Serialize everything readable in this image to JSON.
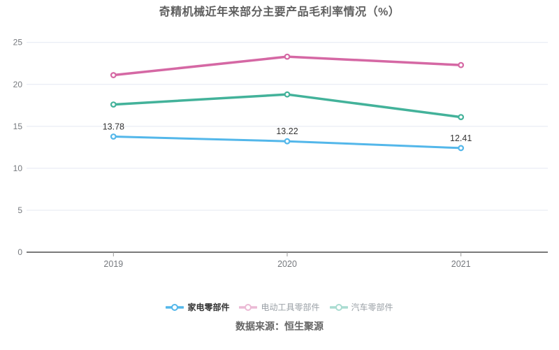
{
  "title": "奇精机械近年来部分主要产品毛利率情况（%）",
  "footer": {
    "source_label": "数据来源：恒生聚源"
  },
  "colors": {
    "appliance_blue": "#53b7ea",
    "tool_pink": "#d568a4",
    "auto_green": "#43b29a",
    "gridline": "#e4e8f2",
    "axis_line": "#4e4e4e",
    "tick": "#999999",
    "axis_text": "#76797e",
    "data_label": "#333333"
  },
  "chart_data": {
    "type": "line",
    "title": "奇精机械近年来部分主要产品毛利率情况（%）",
    "categories": [
      "2019",
      "2020",
      "2021"
    ],
    "series": [
      {
        "name": "家电零部件",
        "color": "#53b7ea",
        "width": 3,
        "values": [
          13.78,
          13.22,
          12.41
        ],
        "show_labels": true,
        "labels": [
          "13.78",
          "13.22",
          "12.41"
        ]
      },
      {
        "name": "电动工具零部件",
        "color": "#d568a4",
        "width": 3.5,
        "values": [
          21.1,
          23.3,
          22.3
        ],
        "show_labels": false,
        "labels": []
      },
      {
        "name": "汽车零部件",
        "color": "#43b29a",
        "width": 3.5,
        "values": [
          17.6,
          18.8,
          16.1
        ],
        "show_labels": false,
        "labels": []
      }
    ],
    "xlabel": "",
    "ylabel": "",
    "ylim": [
      0,
      25
    ],
    "yticks": [
      0,
      5,
      10,
      15,
      20,
      25
    ],
    "grid": true,
    "legend_position": "bottom"
  },
  "legend": {
    "items": [
      {
        "label": "家电零部件",
        "color": "#53b7ea",
        "active": true
      },
      {
        "label": "电动工具零部件",
        "color": "#d568a4",
        "active": false
      },
      {
        "label": "汽车零部件",
        "color": "#43b29a",
        "active": false
      }
    ]
  }
}
